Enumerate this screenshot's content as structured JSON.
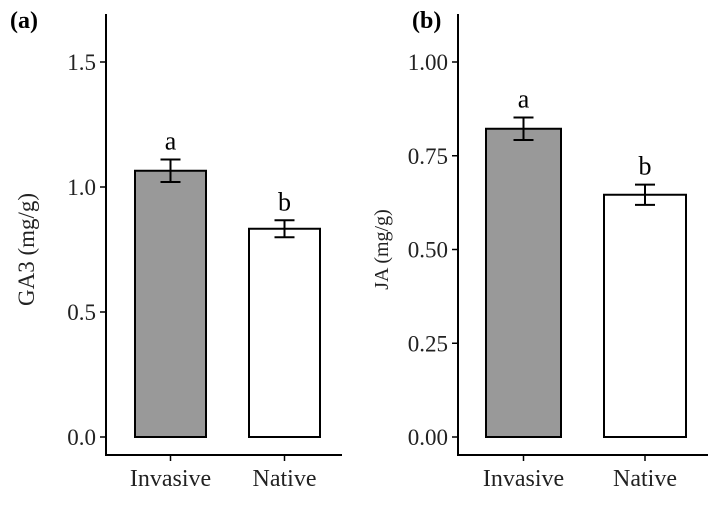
{
  "chart_data": [
    {
      "type": "bar",
      "panel_label": "(a)",
      "categories": [
        "Invasive",
        "Native"
      ],
      "values": [
        1.065,
        0.833
      ],
      "errors": [
        0.045,
        0.034
      ],
      "letters": [
        "a",
        "b"
      ],
      "colors": [
        "#999999",
        "#ffffff"
      ],
      "xlabel": "",
      "ylabel": "GA3 (mg/g)",
      "ylim": [
        0,
        1.5
      ],
      "yticks": [
        "0.0",
        "0.5",
        "1.0",
        "1.5"
      ],
      "ytick_values": [
        0,
        0.5,
        1.0,
        1.5
      ],
      "grid": false
    },
    {
      "type": "bar",
      "panel_label": "(b)",
      "categories": [
        "Invasive",
        "Native"
      ],
      "values": [
        0.822,
        0.646
      ],
      "errors": [
        0.03,
        0.027
      ],
      "letters": [
        "a",
        "b"
      ],
      "colors": [
        "#999999",
        "#ffffff"
      ],
      "xlabel": "",
      "ylabel": "JA (mg/g)",
      "ylim": [
        0,
        1.0
      ],
      "yticks": [
        "0.00",
        "0.25",
        "0.50",
        "0.75",
        "1.00"
      ],
      "ytick_values": [
        0,
        0.25,
        0.5,
        0.75,
        1.0
      ],
      "grid": false
    }
  ]
}
